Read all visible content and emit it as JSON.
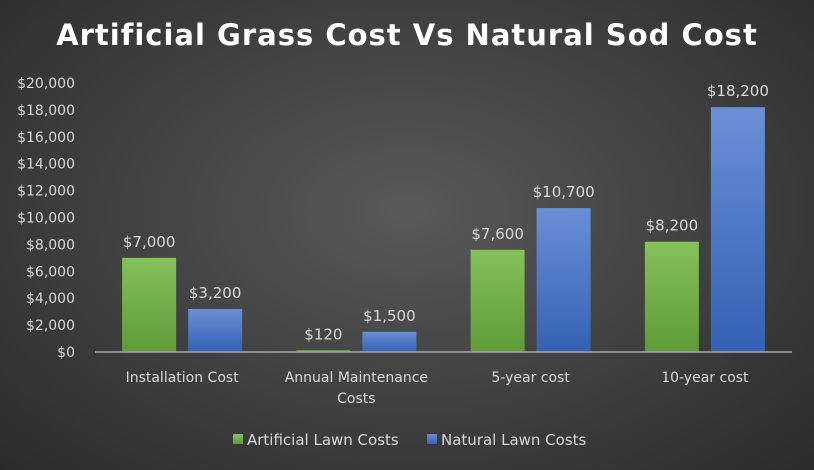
{
  "chart_data": {
    "type": "bar",
    "title": "Artificial Grass Cost Vs Natural Sod Cost",
    "categories": [
      [
        "Installation Cost"
      ],
      [
        "Annual Maintenance",
        "Costs"
      ],
      [
        "5-year cost"
      ],
      [
        "10-year cost"
      ]
    ],
    "series": [
      {
        "name": "Artificial Lawn Costs",
        "values": [
          7000,
          120,
          7600,
          8200
        ],
        "labels": [
          "$7,000",
          "$120",
          "$7,600",
          "$8,200"
        ],
        "color": "#70ad47"
      },
      {
        "name": "Natural Lawn Costs",
        "values": [
          3200,
          1500,
          10700,
          18200
        ],
        "labels": [
          "$3,200",
          "$1,500",
          "$10,700",
          "$18,200"
        ],
        "color": "#4472c4"
      }
    ],
    "ylim": [
      0,
      20000
    ],
    "yticks": [
      "$0",
      "$2,000",
      "$4,000",
      "$6,000",
      "$8,000",
      "$10,000",
      "$12,000",
      "$14,000",
      "$16,000",
      "$18,000",
      "$20,000"
    ],
    "ystep": 2000,
    "grid": false,
    "legend": "bottom"
  }
}
